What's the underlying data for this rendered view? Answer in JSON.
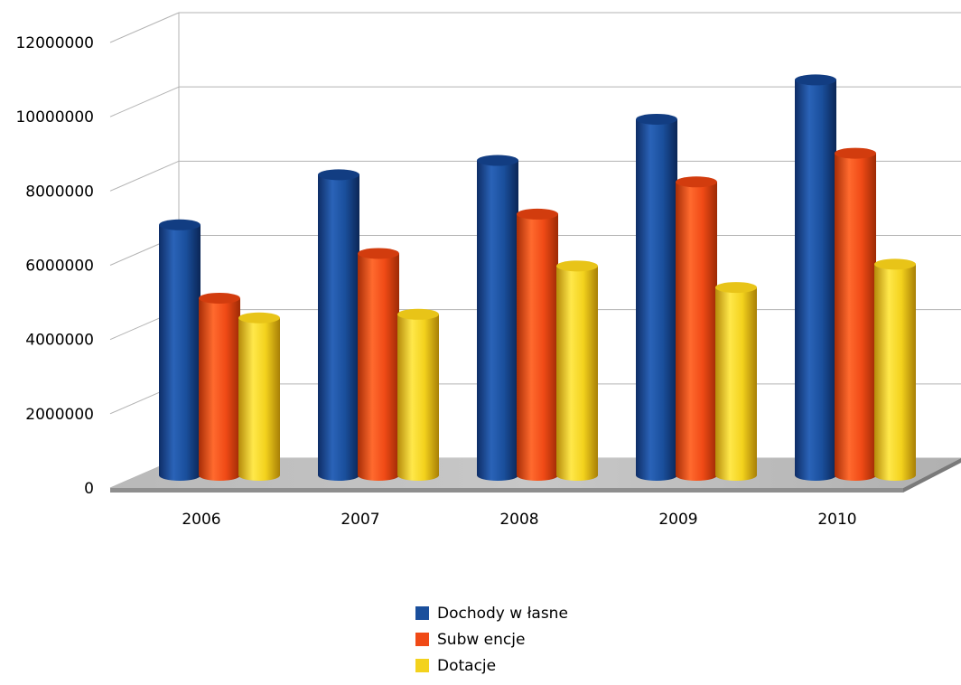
{
  "chart_data": {
    "type": "bar",
    "title": "",
    "xlabel": "",
    "ylabel": "",
    "categories": [
      "2006",
      "2007",
      "2008",
      "2009",
      "2010"
    ],
    "y_ticks": [
      "0",
      "2000000",
      "4000000",
      "6000000",
      "8000000",
      "10000000",
      "12000000"
    ],
    "ylim": [
      0,
      12000000
    ],
    "grid": true,
    "style": "3d-cylinder",
    "legend_position": "bottom",
    "series": [
      {
        "name": "Dochody w łasne",
        "color": "#1a4f9c",
        "values": [
          7000000,
          8400000,
          8800000,
          9950000,
          11050000
        ]
      },
      {
        "name": "Subw encje",
        "color": "#f04a16",
        "values": [
          4950000,
          6200000,
          7300000,
          8200000,
          9000000
        ]
      },
      {
        "name": "Dotacje",
        "color": "#f3d21d",
        "values": [
          4400000,
          4500000,
          5850000,
          5250000,
          5900000
        ]
      }
    ]
  }
}
